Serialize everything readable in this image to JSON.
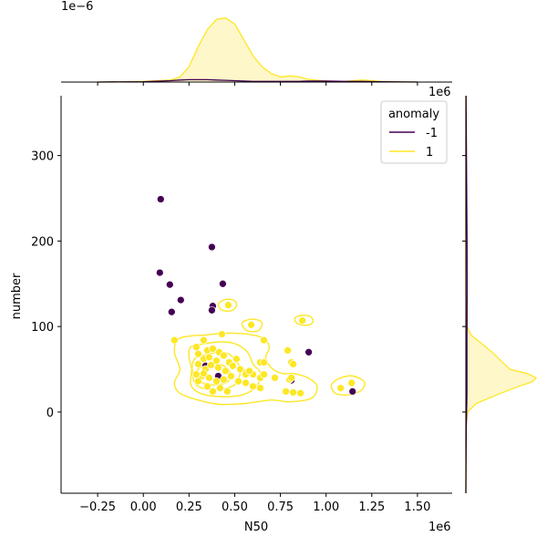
{
  "chart_data": {
    "type": "scatter",
    "subtype": "jointplot",
    "xlabel": "N50",
    "ylabel": "number",
    "x_offset_label": "1e6",
    "y_offset_label": "1e6",
    "top_marginal_offset_label": "1e−6",
    "x_ticks": [
      -250000,
      0,
      250000,
      500000,
      750000,
      1000000,
      1250000,
      1500000
    ],
    "x_tick_labels": [
      "−0.25",
      "0.00",
      "0.25",
      "0.50",
      "0.75",
      "1.00",
      "1.25",
      "1.50"
    ],
    "y_ticks": [
      0,
      100,
      200,
      300
    ],
    "y_tick_labels": [
      "0",
      "100",
      "200",
      "300"
    ],
    "xlim": [
      -450000,
      1690000
    ],
    "ylim": [
      -95,
      370
    ],
    "legend": {
      "title": "anomaly",
      "placement": "top-right",
      "entries": [
        {
          "label": "-1",
          "color": "#440154"
        },
        {
          "label": "1",
          "color": "#fde725"
        }
      ]
    },
    "colors": {
      "anomaly_neg": "#440154",
      "anomaly_pos": "#fde725",
      "density_fill": "#fef6c4",
      "density_line": "#fde725"
    },
    "series": [
      {
        "name": "-1",
        "color": "#440154",
        "points": [
          [
            95000,
            249
          ],
          [
            375000,
            193
          ],
          [
            90000,
            163
          ],
          [
            435000,
            150
          ],
          [
            145000,
            149
          ],
          [
            205000,
            131
          ],
          [
            380000,
            124
          ],
          [
            155000,
            117
          ],
          [
            375000,
            119
          ],
          [
            905000,
            70
          ],
          [
            1145000,
            24
          ],
          [
            410000,
            42
          ],
          [
            340000,
            54
          ],
          [
            810000,
            37
          ]
        ]
      },
      {
        "name": "1",
        "color": "#fde725",
        "points": [
          [
            465000,
            125
          ],
          [
            590000,
            102
          ],
          [
            870000,
            107
          ],
          [
            430000,
            91
          ],
          [
            660000,
            84
          ],
          [
            170000,
            84
          ],
          [
            290000,
            76
          ],
          [
            330000,
            84
          ],
          [
            350000,
            72
          ],
          [
            380000,
            74
          ],
          [
            415000,
            70
          ],
          [
            300000,
            68
          ],
          [
            330000,
            62
          ],
          [
            360000,
            64
          ],
          [
            400000,
            60
          ],
          [
            440000,
            66
          ],
          [
            470000,
            58
          ],
          [
            510000,
            62
          ],
          [
            300000,
            56
          ],
          [
            340000,
            50
          ],
          [
            370000,
            55
          ],
          [
            410000,
            52
          ],
          [
            450000,
            48
          ],
          [
            490000,
            54
          ],
          [
            530000,
            50
          ],
          [
            560000,
            46
          ],
          [
            600000,
            44
          ],
          [
            640000,
            40
          ],
          [
            320000,
            42
          ],
          [
            360000,
            40
          ],
          [
            400000,
            36
          ],
          [
            440000,
            38
          ],
          [
            480000,
            42
          ],
          [
            520000,
            36
          ],
          [
            560000,
            34
          ],
          [
            600000,
            30
          ],
          [
            640000,
            28
          ],
          [
            300000,
            36
          ],
          [
            350000,
            30
          ],
          [
            420000,
            28
          ],
          [
            460000,
            24
          ],
          [
            380000,
            24
          ],
          [
            660000,
            44
          ],
          [
            640000,
            58
          ],
          [
            660000,
            58
          ],
          [
            720000,
            40
          ],
          [
            790000,
            72
          ],
          [
            810000,
            58
          ],
          [
            820000,
            56
          ],
          [
            800000,
            38
          ],
          [
            810000,
            40
          ],
          [
            820000,
            23
          ],
          [
            860000,
            22
          ],
          [
            780000,
            24
          ],
          [
            1080000,
            28
          ],
          [
            1140000,
            34
          ],
          [
            560000,
            44
          ],
          [
            580000,
            48
          ],
          [
            330000,
            45
          ],
          [
            290000,
            44
          ]
        ]
      }
    ],
    "top_marginal": {
      "x": [
        -250000,
        0,
        150000,
        200000,
        250000,
        300000,
        350000,
        400000,
        450000,
        500000,
        550000,
        600000,
        650000,
        700000,
        750000,
        800000,
        850000,
        900000,
        1000000,
        1100000,
        1200000,
        1300000,
        1500000
      ],
      "density_pos": [
        0,
        0.02,
        0.06,
        0.15,
        0.45,
        1.05,
        1.55,
        1.85,
        1.9,
        1.72,
        1.25,
        0.78,
        0.45,
        0.25,
        0.15,
        0.18,
        0.16,
        0.08,
        0.03,
        0.02,
        0.06,
        0.02,
        0
      ],
      "density_neg": [
        0,
        0.01,
        0.04,
        0.06,
        0.07,
        0.07,
        0.07,
        0.06,
        0.05,
        0.04,
        0.03,
        0.02,
        0.02,
        0.02,
        0.02,
        0.02,
        0.02,
        0.03,
        0.03,
        0.02,
        0.02,
        0.01,
        0
      ],
      "ymax": 2.05
    },
    "right_marginal": {
      "y": [
        -95,
        -20,
        0,
        10,
        20,
        30,
        35,
        40,
        45,
        50,
        60,
        70,
        80,
        90,
        100,
        140,
        200,
        260,
        370
      ],
      "density_pos": [
        0,
        0,
        0.002,
        0.012,
        0.035,
        0.06,
        0.075,
        0.08,
        0.07,
        0.05,
        0.04,
        0.03,
        0.018,
        0.006,
        0.001,
        0,
        0,
        0,
        0
      ],
      "density_neg": [
        0,
        0.0004,
        0.0008,
        0.001,
        0.0012,
        0.0012,
        0.0012,
        0.0012,
        0.0012,
        0.0012,
        0.0012,
        0.0012,
        0.0012,
        0.0012,
        0.0013,
        0.0015,
        0.0013,
        0.0009,
        0.0002
      ],
      "xmax": 0.082
    },
    "contours": [
      [
        [
          190000,
          85
        ],
        [
          260000,
          89
        ],
        [
          340000,
          90
        ],
        [
          420000,
          92
        ],
        [
          520000,
          92
        ],
        [
          600000,
          90
        ],
        [
          660000,
          86
        ],
        [
          690000,
          76
        ],
        [
          670000,
          64
        ],
        [
          700000,
          52
        ],
        [
          760000,
          45
        ],
        [
          820000,
          45
        ],
        [
          900000,
          40
        ],
        [
          950000,
          30
        ],
        [
          920000,
          16
        ],
        [
          800000,
          12
        ],
        [
          700000,
          14
        ],
        [
          560000,
          10
        ],
        [
          420000,
          9
        ],
        [
          300000,
          14
        ],
        [
          200000,
          22
        ],
        [
          170000,
          34
        ],
        [
          200000,
          50
        ],
        [
          170000,
          70
        ]
      ],
      [
        [
          260000,
          76
        ],
        [
          340000,
          80
        ],
        [
          420000,
          82
        ],
        [
          500000,
          80
        ],
        [
          570000,
          70
        ],
        [
          600000,
          56
        ],
        [
          640000,
          46
        ],
        [
          620000,
          30
        ],
        [
          540000,
          20
        ],
        [
          420000,
          18
        ],
        [
          310000,
          22
        ],
        [
          260000,
          32
        ],
        [
          265000,
          50
        ],
        [
          250000,
          64
        ]
      ],
      [
        [
          280000,
          62
        ],
        [
          360000,
          68
        ],
        [
          440000,
          70
        ],
        [
          500000,
          62
        ],
        [
          530000,
          48
        ],
        [
          500000,
          32
        ],
        [
          400000,
          26
        ],
        [
          300000,
          30
        ],
        [
          270000,
          44
        ]
      ],
      [
        [
          300000,
          50
        ],
        [
          370000,
          56
        ],
        [
          440000,
          54
        ],
        [
          480000,
          44
        ],
        [
          450000,
          34
        ],
        [
          360000,
          32
        ],
        [
          300000,
          38
        ]
      ],
      [
        [
          410000,
          126
        ],
        [
          430000,
          130
        ],
        [
          465000,
          132
        ],
        [
          500000,
          130
        ],
        [
          510000,
          125
        ],
        [
          495000,
          120
        ],
        [
          465000,
          118
        ],
        [
          425000,
          120
        ]
      ],
      [
        [
          540000,
          104
        ],
        [
          575000,
          108
        ],
        [
          620000,
          108
        ],
        [
          650000,
          104
        ],
        [
          635000,
          96
        ],
        [
          600000,
          94
        ],
        [
          560000,
          96
        ]
      ],
      [
        [
          830000,
          110
        ],
        [
          865000,
          113
        ],
        [
          910000,
          112
        ],
        [
          930000,
          107
        ],
        [
          910000,
          102
        ],
        [
          865000,
          102
        ],
        [
          835000,
          105
        ]
      ],
      [
        [
          1030000,
          32
        ],
        [
          1080000,
          40
        ],
        [
          1150000,
          42
        ],
        [
          1210000,
          35
        ],
        [
          1190000,
          25
        ],
        [
          1120000,
          20
        ],
        [
          1050000,
          22
        ]
      ]
    ]
  }
}
